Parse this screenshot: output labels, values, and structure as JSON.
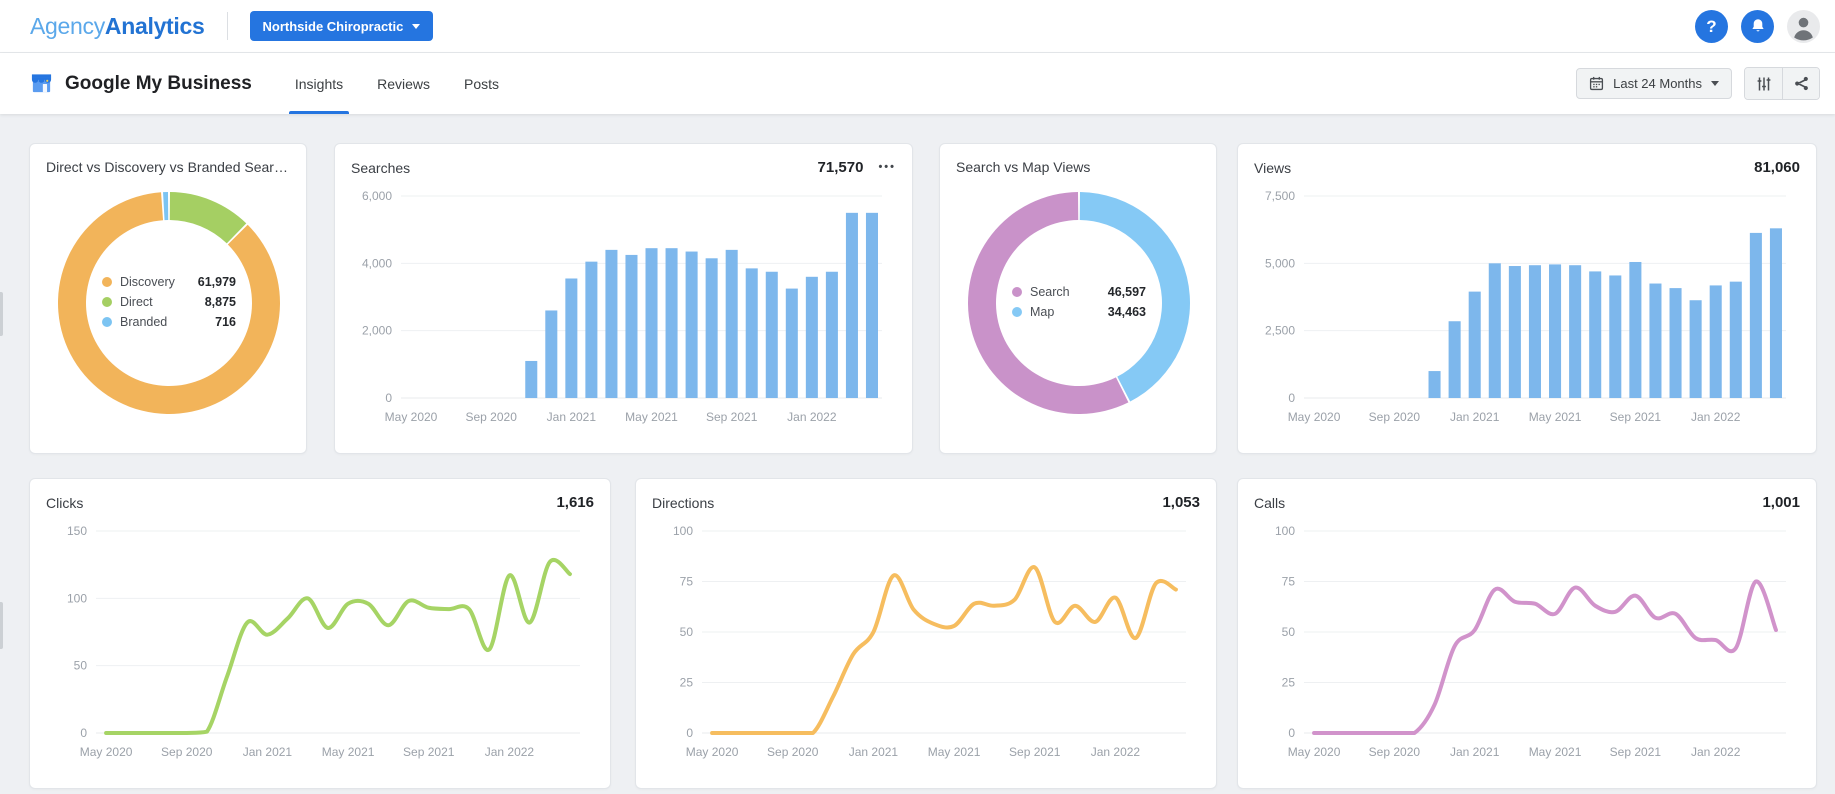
{
  "header": {
    "logo_part1": "Agency",
    "logo_part2": "Analytics",
    "campaign_button_label": "Northside Chiropractic",
    "accent_color": "#2575e0",
    "icons": [
      "help-icon",
      "notifications-bell-icon",
      "user-avatar"
    ]
  },
  "toolbar": {
    "title": "Google My Business",
    "tabs": [
      {
        "label": "Insights",
        "active": true
      },
      {
        "label": "Reviews",
        "active": false
      },
      {
        "label": "Posts",
        "active": false
      }
    ],
    "date_range_label": "Last 24 Months",
    "icon_buttons": [
      "column-settings-icon",
      "share-icon"
    ]
  },
  "cards": {
    "breakdown": {
      "title": "Direct vs Discovery vs Branded Searches"
    },
    "searches": {
      "title": "Searches",
      "total": "71,570",
      "menu_icon": "•••"
    },
    "search_vs_map": {
      "title": "Search vs Map Views"
    },
    "views": {
      "title": "Views",
      "total": "81,060"
    },
    "clicks": {
      "title": "Clicks",
      "total": "1,616"
    },
    "directions": {
      "title": "Directions",
      "total": "1,053"
    },
    "calls": {
      "title": "Calls",
      "total": "1,001"
    }
  },
  "chart_data": [
    {
      "id": "breakdown",
      "type": "donut",
      "title": "Direct vs Discovery vs Branded Searches",
      "segments": [
        {
          "name": "Discovery",
          "value": 61979,
          "color": "#f2b45a"
        },
        {
          "name": "Direct",
          "value": 8875,
          "color": "#a5cf63"
        },
        {
          "name": "Branded",
          "value": 716,
          "color": "#7cc4f2"
        }
      ],
      "draw_order": [
        1,
        0,
        2
      ],
      "start_angle": "top",
      "legend_position": "center"
    },
    {
      "id": "searches",
      "type": "bar",
      "title": "Searches",
      "total": 71570,
      "color": "#7db7ec",
      "ymax": 6000,
      "yticks": [
        0,
        2000,
        4000,
        6000
      ],
      "xtick_every": 4,
      "x": [
        "May 2020",
        "Jun 2020",
        "Jul 2020",
        "Aug 2020",
        "Sep 2020",
        "Oct 2020",
        "Nov 2020",
        "Dec 2020",
        "Jan 2021",
        "Feb 2021",
        "Mar 2021",
        "Apr 2021",
        "May 2021",
        "Jun 2021",
        "Jul 2021",
        "Aug 2021",
        "Sep 2021",
        "Oct 2021",
        "Nov 2021",
        "Dec 2021",
        "Jan 2022",
        "Feb 2022",
        "Mar 2022",
        "Apr 2022"
      ],
      "values": [
        0,
        0,
        0,
        0,
        0,
        0,
        1100,
        2600,
        3550,
        4050,
        4400,
        4250,
        4450,
        4450,
        4350,
        4150,
        4400,
        3850,
        3750,
        3250,
        3600,
        3750,
        5500,
        5500
      ]
    },
    {
      "id": "search_vs_map",
      "type": "donut",
      "title": "Search vs Map Views",
      "segments": [
        {
          "name": "Search",
          "value": 46597,
          "color": "#c992c9"
        },
        {
          "name": "Map",
          "value": 34463,
          "color": "#85c9f5"
        }
      ],
      "draw_order": [
        1,
        0
      ],
      "start_angle": "top",
      "legend_position": "center"
    },
    {
      "id": "views",
      "type": "bar",
      "title": "Views",
      "total": 81060,
      "color": "#7db7ec",
      "ymax": 7500,
      "yticks": [
        0,
        2500,
        5000,
        7500
      ],
      "xtick_every": 4,
      "x": [
        "May 2020",
        "Jun 2020",
        "Jul 2020",
        "Aug 2020",
        "Sep 2020",
        "Oct 2020",
        "Nov 2020",
        "Dec 2020",
        "Jan 2021",
        "Feb 2021",
        "Mar 2021",
        "Apr 2021",
        "May 2021",
        "Jun 2021",
        "Jul 2021",
        "Aug 2021",
        "Sep 2021",
        "Oct 2021",
        "Nov 2021",
        "Dec 2021",
        "Jan 2022",
        "Feb 2022",
        "Mar 2022",
        "Apr 2022"
      ],
      "values": [
        0,
        0,
        0,
        0,
        0,
        0,
        1000,
        2850,
        3950,
        5000,
        4900,
        4930,
        4960,
        4930,
        4700,
        4550,
        5050,
        4250,
        4080,
        3630,
        4180,
        4320,
        6130,
        6300
      ]
    },
    {
      "id": "clicks",
      "type": "line",
      "title": "Clicks",
      "total": 1616,
      "color": "#a6d465",
      "ymax": 150,
      "yticks": [
        0,
        50,
        100,
        150
      ],
      "xtick_every": 4,
      "x": [
        "May 2020",
        "Jun 2020",
        "Jul 2020",
        "Aug 2020",
        "Sep 2020",
        "Oct 2020",
        "Nov 2020",
        "Dec 2020",
        "Jan 2021",
        "Feb 2021",
        "Mar 2021",
        "Apr 2021",
        "May 2021",
        "Jun 2021",
        "Jul 2021",
        "Aug 2021",
        "Sep 2021",
        "Oct 2021",
        "Nov 2021",
        "Dec 2021",
        "Jan 2022",
        "Feb 2022",
        "Mar 2022",
        "Apr 2022"
      ],
      "values": [
        0,
        0,
        0,
        0,
        0,
        1,
        42,
        82,
        73,
        85,
        100,
        78,
        96,
        96,
        80,
        98,
        93,
        92,
        92,
        62,
        117,
        82,
        127,
        118
      ]
    },
    {
      "id": "directions",
      "type": "line",
      "title": "Directions",
      "total": 1053,
      "color": "#f6bd5f",
      "ymax": 100,
      "yticks": [
        0,
        25,
        50,
        75,
        100
      ],
      "xtick_every": 4,
      "x": [
        "May 2020",
        "Jun 2020",
        "Jul 2020",
        "Aug 2020",
        "Sep 2020",
        "Oct 2020",
        "Nov 2020",
        "Dec 2020",
        "Jan 2021",
        "Feb 2021",
        "Mar 2021",
        "Apr 2021",
        "May 2021",
        "Jun 2021",
        "Jul 2021",
        "Aug 2021",
        "Sep 2021",
        "Oct 2021",
        "Nov 2021",
        "Dec 2021",
        "Jan 2022",
        "Feb 2022",
        "Mar 2022",
        "Apr 2022"
      ],
      "values": [
        0,
        0,
        0,
        0,
        0,
        0,
        18,
        39,
        50,
        78,
        61,
        54,
        53,
        64,
        63,
        66,
        82,
        55,
        63,
        55,
        67,
        47,
        74,
        71
      ]
    },
    {
      "id": "calls",
      "type": "line",
      "title": "Calls",
      "total": 1001,
      "color": "#d193cb",
      "ymax": 100,
      "yticks": [
        0,
        25,
        50,
        75,
        100
      ],
      "xtick_every": 4,
      "x": [
        "May 2020",
        "Jun 2020",
        "Jul 2020",
        "Aug 2020",
        "Sep 2020",
        "Oct 2020",
        "Nov 2020",
        "Dec 2020",
        "Jan 2021",
        "Feb 2021",
        "Mar 2021",
        "Apr 2021",
        "May 2021",
        "Jun 2021",
        "Jul 2021",
        "Aug 2021",
        "Sep 2021",
        "Oct 2021",
        "Nov 2021",
        "Dec 2021",
        "Jan 2022",
        "Feb 2022",
        "Mar 2022",
        "Apr 2022"
      ],
      "values": [
        0,
        0,
        0,
        0,
        0,
        0,
        14,
        43,
        51,
        71,
        65,
        64,
        59,
        72,
        63,
        60,
        68,
        57,
        59,
        47,
        46,
        42,
        75,
        51
      ]
    }
  ]
}
